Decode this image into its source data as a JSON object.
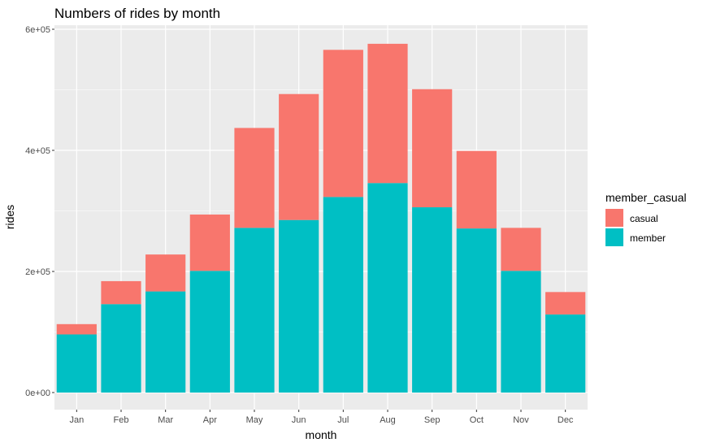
{
  "chart_data": {
    "type": "bar",
    "stacked": true,
    "title": "Numbers of rides by month",
    "xlabel": "month",
    "ylabel": "rides",
    "categories": [
      "Jan",
      "Feb",
      "Mar",
      "Apr",
      "May",
      "Jun",
      "Jul",
      "Aug",
      "Sep",
      "Oct",
      "Nov",
      "Dec"
    ],
    "series": [
      {
        "name": "member",
        "color": "#00BFC4",
        "values": [
          96000,
          146000,
          167000,
          201000,
          272000,
          285000,
          323000,
          346000,
          306000,
          271000,
          201000,
          129000
        ]
      },
      {
        "name": "casual",
        "color": "#F8766D",
        "values": [
          17000,
          38000,
          61000,
          93000,
          165000,
          208000,
          243000,
          230000,
          195000,
          128000,
          71000,
          37000
        ]
      }
    ],
    "yticks": [
      0,
      200000,
      400000,
      600000
    ],
    "ytick_labels": [
      "0e+00",
      "2e+05",
      "4e+05",
      "6e+05"
    ],
    "ylim": [
      0,
      600000
    ],
    "grid": true,
    "legend": {
      "title": "member_casual",
      "position": "right",
      "entries": [
        {
          "label": "casual",
          "color": "#F8766D"
        },
        {
          "label": "member",
          "color": "#00BFC4"
        }
      ]
    }
  }
}
